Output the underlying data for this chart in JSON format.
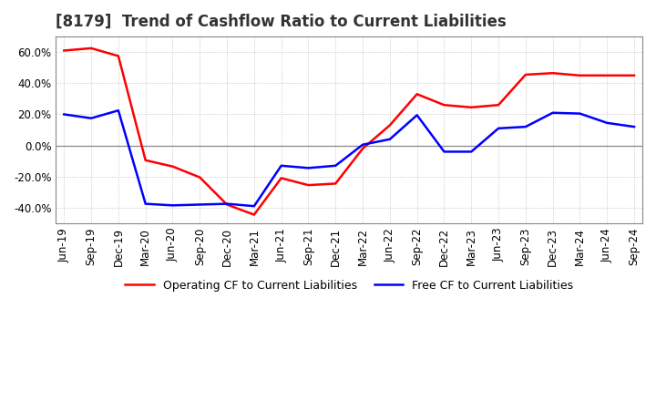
{
  "title": "[8179]  Trend of Cashflow Ratio to Current Liabilities",
  "x_labels": [
    "Jun-19",
    "Sep-19",
    "Dec-19",
    "Mar-20",
    "Jun-20",
    "Sep-20",
    "Dec-20",
    "Mar-21",
    "Jun-21",
    "Sep-21",
    "Dec-21",
    "Mar-22",
    "Jun-22",
    "Sep-22",
    "Dec-22",
    "Mar-23",
    "Jun-23",
    "Sep-23",
    "Dec-23",
    "Mar-24",
    "Jun-24",
    "Sep-24"
  ],
  "operating_cf": [
    0.61,
    0.625,
    0.575,
    -0.095,
    -0.135,
    -0.205,
    -0.38,
    -0.445,
    -0.21,
    -0.255,
    -0.245,
    -0.02,
    0.13,
    0.33,
    0.26,
    0.245,
    0.26,
    0.455,
    0.465,
    0.45,
    0.45,
    0.45
  ],
  "free_cf": [
    0.2,
    0.175,
    0.225,
    -0.375,
    -0.385,
    -0.38,
    -0.375,
    -0.39,
    -0.13,
    -0.145,
    -0.13,
    0.005,
    0.04,
    0.195,
    -0.04,
    -0.04,
    0.11,
    0.12,
    0.21,
    0.205,
    0.145,
    0.12
  ],
  "operating_cf_color": "#ff0000",
  "free_cf_color": "#0000ff",
  "ylim": [
    -0.5,
    0.7
  ],
  "yticks": [
    -0.4,
    -0.2,
    0.0,
    0.2,
    0.4,
    0.6
  ],
  "legend_labels": [
    "Operating CF to Current Liabilities",
    "Free CF to Current Liabilities"
  ],
  "background_color": "#ffffff",
  "grid_color": "#bbbbbb",
  "title_color": "#333333",
  "title_fontsize": 12,
  "tick_fontsize": 8.5,
  "linewidth": 1.8
}
